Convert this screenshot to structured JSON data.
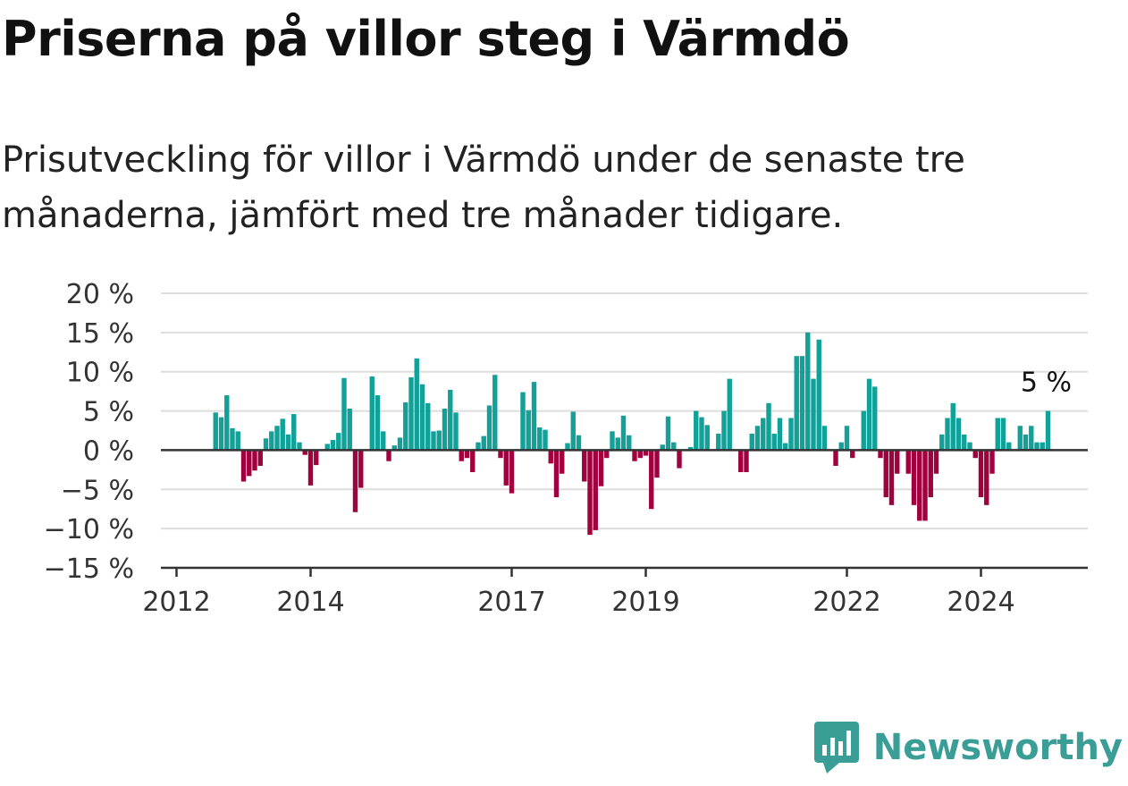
{
  "header": {
    "title": "Priserna på villor steg i Värmdö",
    "subtitle": "Prisutveckling för villor i Värmdö under de senaste tre månaderna, jämfört med tre månader tidigare."
  },
  "brand": {
    "name": "Newsworthy"
  },
  "colors": {
    "positive": "#12a198",
    "negative": "#a1003f",
    "grid": "#dddddd",
    "axis": "#333333",
    "brand": "#3a9e96"
  },
  "chart_data": {
    "type": "bar",
    "start": "2012-08",
    "ylim": [
      -15,
      20
    ],
    "yticks": [
      20,
      15,
      10,
      5,
      0,
      -5,
      -10,
      -15
    ],
    "ytick_labels": [
      "20 %",
      "15 %",
      "10 %",
      "5 %",
      "0 %",
      "−5 %",
      "−10 %",
      "−15 %"
    ],
    "xticks": [
      "2012",
      "2014",
      "2017",
      "2019",
      "2022",
      "2024"
    ],
    "annotation": "5 %",
    "values": [
      4.8,
      4.2,
      7.0,
      2.8,
      2.4,
      -4.0,
      -3.3,
      -2.6,
      -2.0,
      1.5,
      2.4,
      3.1,
      4.0,
      2.0,
      4.6,
      1.0,
      -0.6,
      -4.5,
      -1.9,
      0.0,
      0.8,
      1.3,
      2.2,
      9.2,
      5.3,
      -7.9,
      -4.8,
      0.0,
      9.4,
      7.0,
      2.4,
      -1.4,
      0.6,
      1.6,
      6.1,
      9.3,
      11.7,
      8.4,
      6.0,
      2.4,
      2.5,
      5.3,
      7.7,
      4.8,
      -1.4,
      -1.0,
      -2.8,
      1.0,
      1.8,
      5.7,
      9.6,
      -1.0,
      -4.5,
      -5.5,
      0.0,
      7.4,
      5.1,
      8.7,
      2.9,
      2.6,
      -1.7,
      -6.0,
      -3.0,
      0.9,
      4.9,
      1.9,
      -4.0,
      -10.8,
      -10.2,
      -4.6,
      -1.0,
      2.4,
      1.6,
      4.4,
      1.9,
      -1.4,
      -1.0,
      -0.7,
      -7.5,
      -3.5,
      0.7,
      4.3,
      1.0,
      -2.3,
      0.0,
      0.4,
      5.0,
      4.2,
      3.2,
      0.0,
      2.1,
      5.0,
      9.1,
      0.0,
      -2.8,
      -2.8,
      2.1,
      3.1,
      4.1,
      6.0,
      2.1,
      4.1,
      0.9,
      4.1,
      12.0,
      12.0,
      15.0,
      9.1,
      14.1,
      3.1,
      0.0,
      -2.0,
      1.0,
      3.1,
      -1.0,
      0.0,
      5.0,
      9.1,
      8.1,
      -1.0,
      -6.0,
      -7.0,
      -3.0,
      0.0,
      -3.0,
      -7.0,
      -9.0,
      -9.0,
      -6.0,
      -3.0,
      2.0,
      4.1,
      6.0,
      4.1,
      2.0,
      1.0,
      -1.0,
      -6.0,
      -7.0,
      -3.0,
      4.1,
      4.1,
      1.0,
      0.0,
      3.1,
      2.0,
      3.1,
      1.0,
      1.0,
      5.0
    ]
  }
}
